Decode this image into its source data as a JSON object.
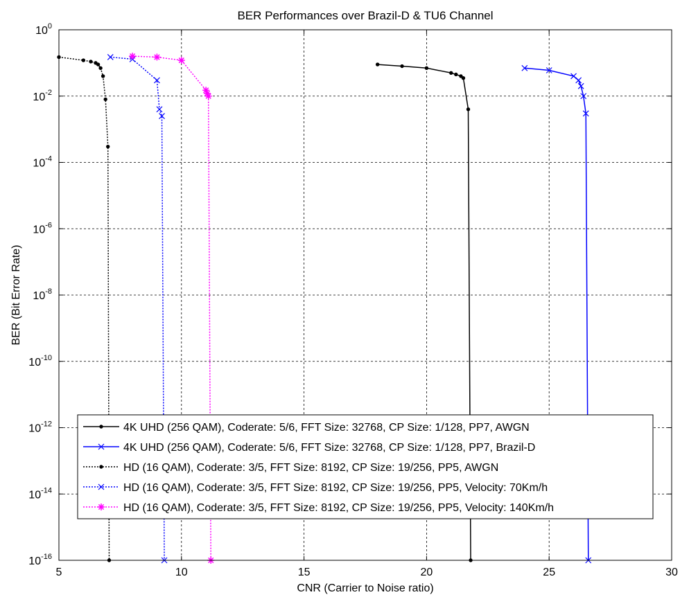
{
  "chart_data": {
    "type": "line",
    "title": "BER Performances over Brazil-D & TU6 Channel",
    "xlabel": "CNR (Carrier to Noise ratio)",
    "ylabel": "BER (Bit Error Rate)",
    "xlim": [
      5,
      30
    ],
    "ylim_log10": [
      -16,
      0
    ],
    "yscale": "log",
    "grid": true,
    "legend_position": "bottom-center",
    "x_ticks": [
      {
        "v": 5,
        "label": "5"
      },
      {
        "v": 10,
        "label": "10"
      },
      {
        "v": 15,
        "label": "15"
      },
      {
        "v": 20,
        "label": "20"
      },
      {
        "v": 25,
        "label": "25"
      },
      {
        "v": 30,
        "label": "30"
      }
    ],
    "y_ticks": [
      {
        "exp": 0,
        "base": "10",
        "sup": "0"
      },
      {
        "exp": -2,
        "base": "10",
        "sup": "-2"
      },
      {
        "exp": -4,
        "base": "10",
        "sup": "-4"
      },
      {
        "exp": -6,
        "base": "10",
        "sup": "-6"
      },
      {
        "exp": -8,
        "base": "10",
        "sup": "-8"
      },
      {
        "exp": -10,
        "base": "10",
        "sup": "-10"
      },
      {
        "exp": -12,
        "base": "10",
        "sup": "-12"
      },
      {
        "exp": -14,
        "base": "10",
        "sup": "-14"
      },
      {
        "exp": -16,
        "base": "10",
        "sup": "-16"
      }
    ],
    "series": [
      {
        "name": "4K UHD (256 QAM), Coderate: 5/6, FFT Size: 32768, CP Size: 1/128, PP7, AWGN",
        "color": "#000000",
        "dash": "solid",
        "marker": "dot",
        "x": [
          18,
          19,
          20,
          21,
          21.2,
          21.4,
          21.5,
          21.7,
          21.8
        ],
        "y": [
          0.09,
          0.08,
          0.07,
          0.05,
          0.045,
          0.04,
          0.035,
          0.004,
          1e-16
        ]
      },
      {
        "name": "4K UHD (256 QAM), Coderate: 5/6, FFT Size: 32768, CP Size: 1/128, PP7, Brazil-D",
        "color": "#0000ff",
        "dash": "solid",
        "marker": "x",
        "x": [
          24,
          25,
          26,
          26.2,
          26.3,
          26.4,
          26.5,
          26.6
        ],
        "y": [
          0.07,
          0.06,
          0.04,
          0.03,
          0.02,
          0.01,
          0.003,
          1e-16
        ]
      },
      {
        "name": "HD (16 QAM), Coderate: 3/5, FFT Size: 8192, CP Size: 19/256, PP5, AWGN",
        "color": "#000000",
        "dash": "dotted",
        "marker": "dot",
        "x": [
          5,
          6,
          6.3,
          6.5,
          6.6,
          6.7,
          6.8,
          6.9,
          7.0,
          7.05
        ],
        "y": [
          0.15,
          0.12,
          0.11,
          0.1,
          0.09,
          0.07,
          0.04,
          0.008,
          0.0003,
          1e-16
        ]
      },
      {
        "name": "HD (16 QAM), Coderate: 3/5, FFT Size: 8192, CP Size: 19/256, PP5, Velocity: 70Km/h",
        "color": "#0000ff",
        "dash": "dotted",
        "marker": "x",
        "x": [
          7.1,
          8,
          9,
          9.1,
          9.2,
          9.3
        ],
        "y": [
          0.15,
          0.13,
          0.03,
          0.004,
          0.0025,
          1e-16
        ]
      },
      {
        "name": "HD (16 QAM), Coderate: 3/5, FFT Size: 8192, CP Size: 19/256, PP5, Velocity: 140Km/h",
        "color": "#ff00ff",
        "dash": "dotted",
        "marker": "star",
        "x": [
          8,
          9,
          10,
          11,
          11.05,
          11.1,
          11.2
        ],
        "y": [
          0.16,
          0.15,
          0.12,
          0.015,
          0.012,
          0.01,
          1e-16
        ]
      }
    ]
  }
}
